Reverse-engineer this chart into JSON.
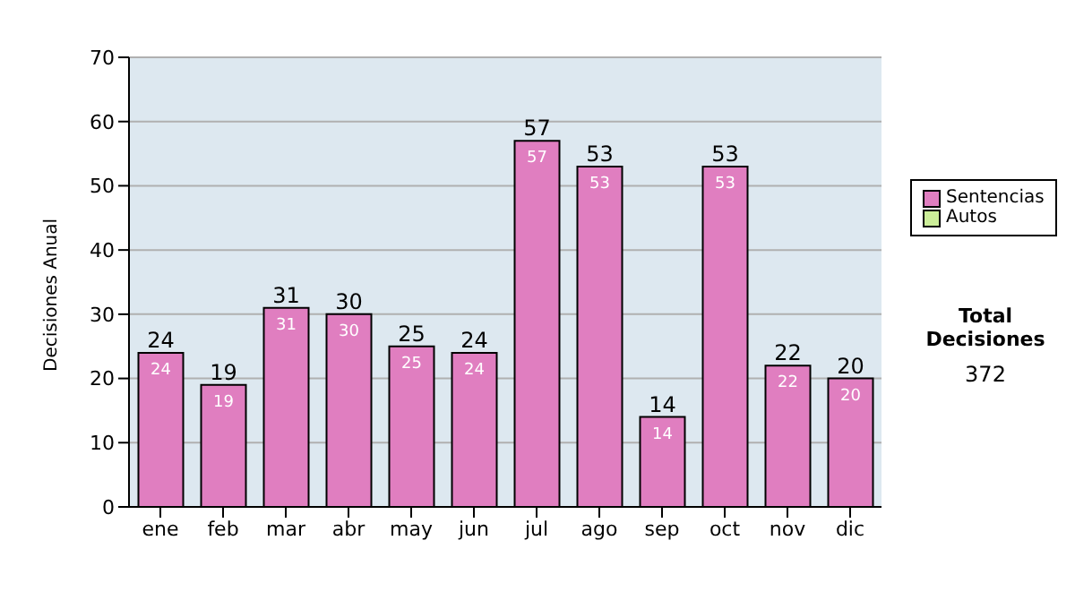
{
  "chart_data": {
    "type": "bar",
    "ylabel": "Decisiones Anual",
    "categories": [
      "ene",
      "feb",
      "mar",
      "abr",
      "may",
      "jun",
      "jul",
      "ago",
      "sep",
      "oct",
      "nov",
      "dic"
    ],
    "series": [
      {
        "name": "Sentencias",
        "color": "#e07ec0",
        "values": [
          24,
          19,
          31,
          30,
          25,
          24,
          57,
          53,
          14,
          53,
          22,
          20
        ],
        "value_labels": [
          "24",
          "19",
          "31",
          "30",
          "25",
          "24",
          "57",
          "53",
          "14",
          "53",
          "22",
          "20"
        ]
      },
      {
        "name": "Autos",
        "color": "#ccee99",
        "values": [
          0,
          0,
          0,
          0,
          0,
          0,
          0,
          0,
          0,
          0,
          0,
          0
        ]
      }
    ],
    "stacked": true,
    "totals": [
      "24",
      "19",
      "31",
      "30",
      "25",
      "24",
      "57",
      "53",
      "14",
      "53",
      "22",
      "20"
    ],
    "ylim": [
      0,
      70
    ],
    "yticks": [
      0,
      10,
      20,
      30,
      40,
      50,
      60,
      70
    ],
    "grid": "y",
    "legend": "right",
    "annotations": [
      "Total Decisiones",
      "372"
    ]
  }
}
